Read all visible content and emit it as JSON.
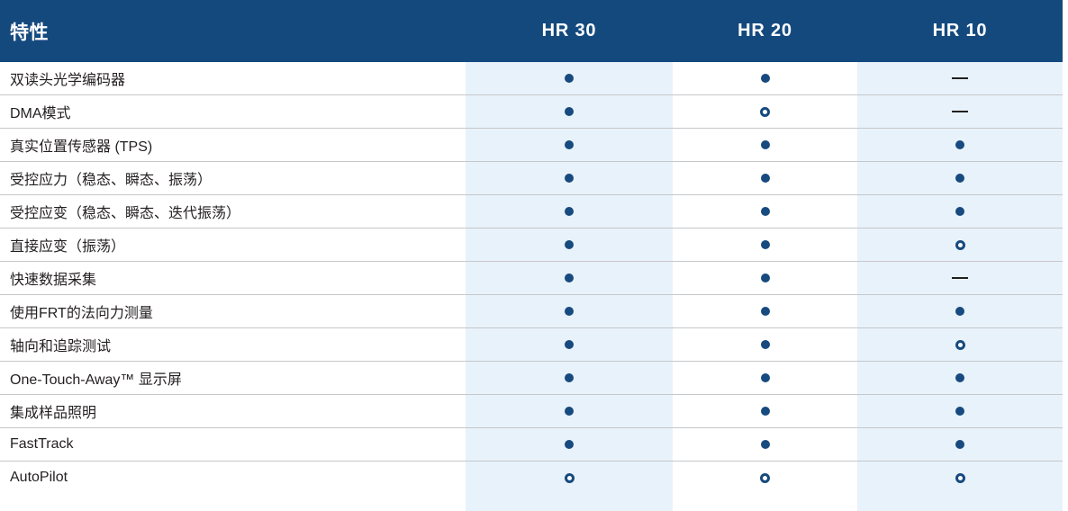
{
  "table": {
    "feature_header": "特性",
    "products": [
      "HR 30",
      "HR 20",
      "HR 10"
    ],
    "marker_types": {
      "filled": "filled-dot",
      "open": "open-circle",
      "dash": "dash"
    },
    "rows": [
      {
        "feature": "双读头光学编码器",
        "values": [
          "filled",
          "filled",
          "dash"
        ]
      },
      {
        "feature": "DMA模式",
        "values": [
          "filled",
          "open",
          "dash"
        ]
      },
      {
        "feature": "真实位置传感器 (TPS)",
        "values": [
          "filled",
          "filled",
          "filled"
        ]
      },
      {
        "feature": "受控应力（稳态、瞬态、振荡）",
        "values": [
          "filled",
          "filled",
          "filled"
        ]
      },
      {
        "feature": "受控应变（稳态、瞬态、迭代振荡）",
        "values": [
          "filled",
          "filled",
          "filled"
        ]
      },
      {
        "feature": "直接应变（振荡）",
        "values": [
          "filled",
          "filled",
          "open"
        ]
      },
      {
        "feature": "快速数据采集",
        "values": [
          "filled",
          "filled",
          "dash"
        ]
      },
      {
        "feature": "使用FRT的法向力测量",
        "values": [
          "filled",
          "filled",
          "filled"
        ]
      },
      {
        "feature": "轴向和追踪测试",
        "values": [
          "filled",
          "filled",
          "open"
        ]
      },
      {
        "feature": "One-Touch-Away™ 显示屏",
        "values": [
          "filled",
          "filled",
          "filled"
        ]
      },
      {
        "feature": "集成样品照明",
        "values": [
          "filled",
          "filled",
          "filled"
        ]
      },
      {
        "feature": "FastTrack",
        "values": [
          "filled",
          "filled",
          "filled"
        ]
      },
      {
        "feature": "AutoPilot",
        "values": [
          "open",
          "open",
          "open"
        ]
      }
    ]
  },
  "colors": {
    "header_bg": "#14497E",
    "band_bg": "#E8F2FA",
    "marker": "#174A7E",
    "divider": "#C6C7C9",
    "text": "#231F20"
  }
}
